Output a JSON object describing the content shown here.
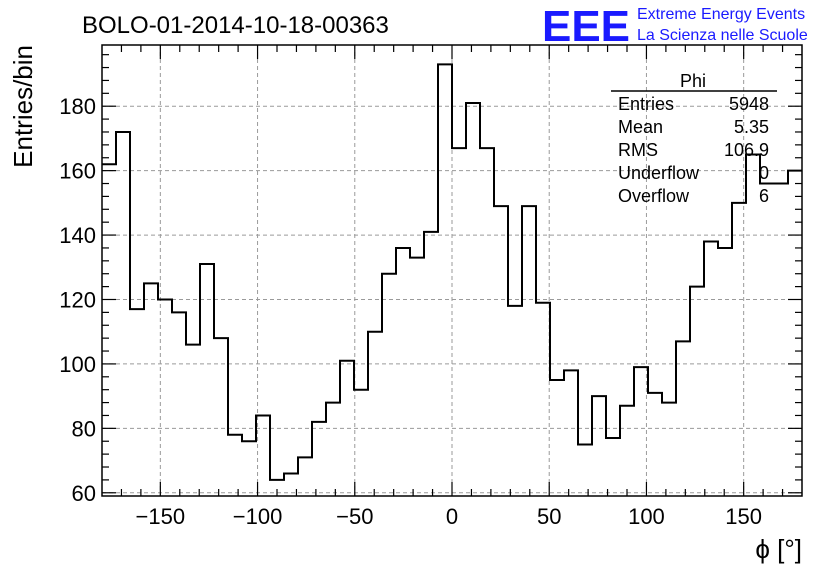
{
  "chart_data": {
    "type": "histogram",
    "title": "BOLO-01-2014-10-18-00363",
    "xlabel": "ϕ [°]",
    "ylabel": "Entries/bin",
    "xlim": [
      -180,
      180
    ],
    "ylim": [
      59,
      199
    ],
    "grid": true,
    "bin_width": 7.2,
    "x_ticks": [
      -150,
      -100,
      -50,
      0,
      50,
      100,
      150
    ],
    "x_tick_labels": [
      "−150",
      "−100",
      "−50",
      "0",
      "50",
      "100",
      "150"
    ],
    "y_ticks": [
      60,
      80,
      100,
      120,
      140,
      160,
      180
    ],
    "y_tick_labels": [
      "60",
      "80",
      "100",
      "120",
      "140",
      "160",
      "180"
    ],
    "values": [
      162,
      172,
      117,
      125,
      120,
      116,
      106,
      131,
      108,
      78,
      76,
      84,
      64,
      66,
      71,
      82,
      88,
      101,
      92,
      110,
      128,
      136,
      133,
      141,
      193,
      167,
      181,
      167,
      149,
      118,
      149,
      119,
      95,
      98,
      75,
      90,
      77,
      87,
      99,
      91,
      88,
      107,
      124,
      138,
      136,
      150,
      165,
      156,
      156,
      160
    ]
  },
  "stats_box": {
    "title": "Phi",
    "rows": [
      {
        "label": "Entries",
        "value": "5948"
      },
      {
        "label": "Mean",
        "value": "5.35"
      },
      {
        "label": "RMS",
        "value": "106.9"
      },
      {
        "label": "Underflow",
        "value": "0"
      },
      {
        "label": "Overflow",
        "value": "6"
      }
    ]
  },
  "branding": {
    "logo": "EEE",
    "line1": "Extreme Energy Events",
    "line2": "La Scienza nelle Scuole",
    "color": "#1a1aff"
  }
}
